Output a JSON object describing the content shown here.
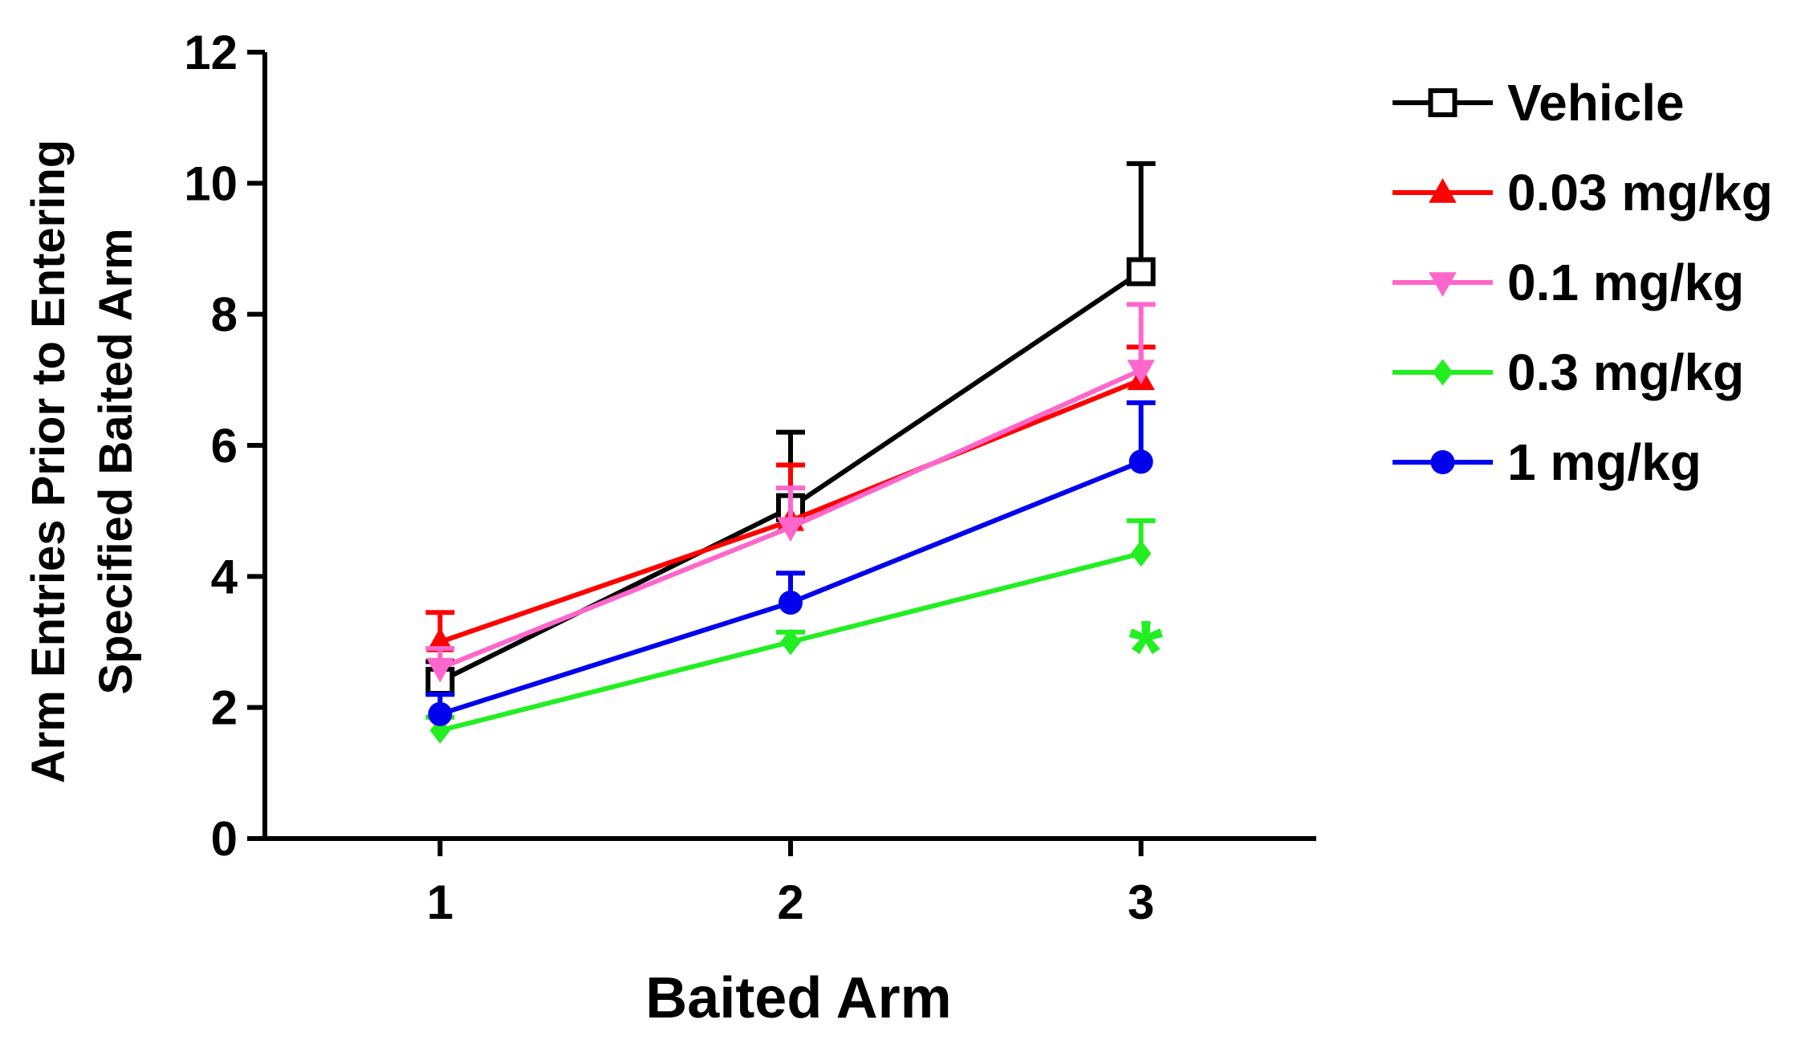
{
  "chart_data": {
    "type": "line",
    "title": "",
    "xlabel": "Baited Arm",
    "ylabel_lines": [
      "Arm Entries Prior to Entering",
      "Specified Baited Arm"
    ],
    "categories": [
      "1",
      "2",
      "3"
    ],
    "x": [
      1,
      2,
      3
    ],
    "xlim": [
      0.5,
      3.5
    ],
    "ylim": [
      0,
      12
    ],
    "yticks": [
      0,
      2,
      4,
      6,
      8,
      10,
      12
    ],
    "ytick_labels": [
      "0",
      "2",
      "4",
      "6",
      "8",
      "10",
      "12"
    ],
    "grid": false,
    "legend_position": "right",
    "series": [
      {
        "name": "Vehicle",
        "color": "#000000",
        "marker": "open-square",
        "values": [
          2.4,
          5.05,
          8.65
        ],
        "error": [
          0.3,
          1.15,
          1.65
        ]
      },
      {
        "name": "0.03 mg/kg",
        "color": "#ff0000",
        "marker": "triangle-up",
        "values": [
          3.0,
          4.85,
          7.0
        ],
        "error": [
          0.45,
          0.85,
          0.5
        ]
      },
      {
        "name": "0.1 mg/kg",
        "color": "#ff66cc",
        "marker": "triangle-down",
        "values": [
          2.6,
          4.75,
          7.15
        ],
        "error": [
          0.3,
          0.6,
          1.0
        ]
      },
      {
        "name": "0.3 mg/kg",
        "color": "#22ee22",
        "marker": "diamond",
        "values": [
          1.65,
          3.0,
          4.35
        ],
        "error": [
          0.2,
          0.15,
          0.5
        ]
      },
      {
        "name": "1 mg/kg",
        "color": "#0000ee",
        "marker": "circle",
        "values": [
          1.9,
          3.6,
          5.75
        ],
        "error": [
          0.3,
          0.45,
          0.9
        ]
      }
    ],
    "annotations": [
      {
        "text": "*",
        "x": 3,
        "y": 3.0,
        "color": "#22ee22"
      }
    ]
  }
}
